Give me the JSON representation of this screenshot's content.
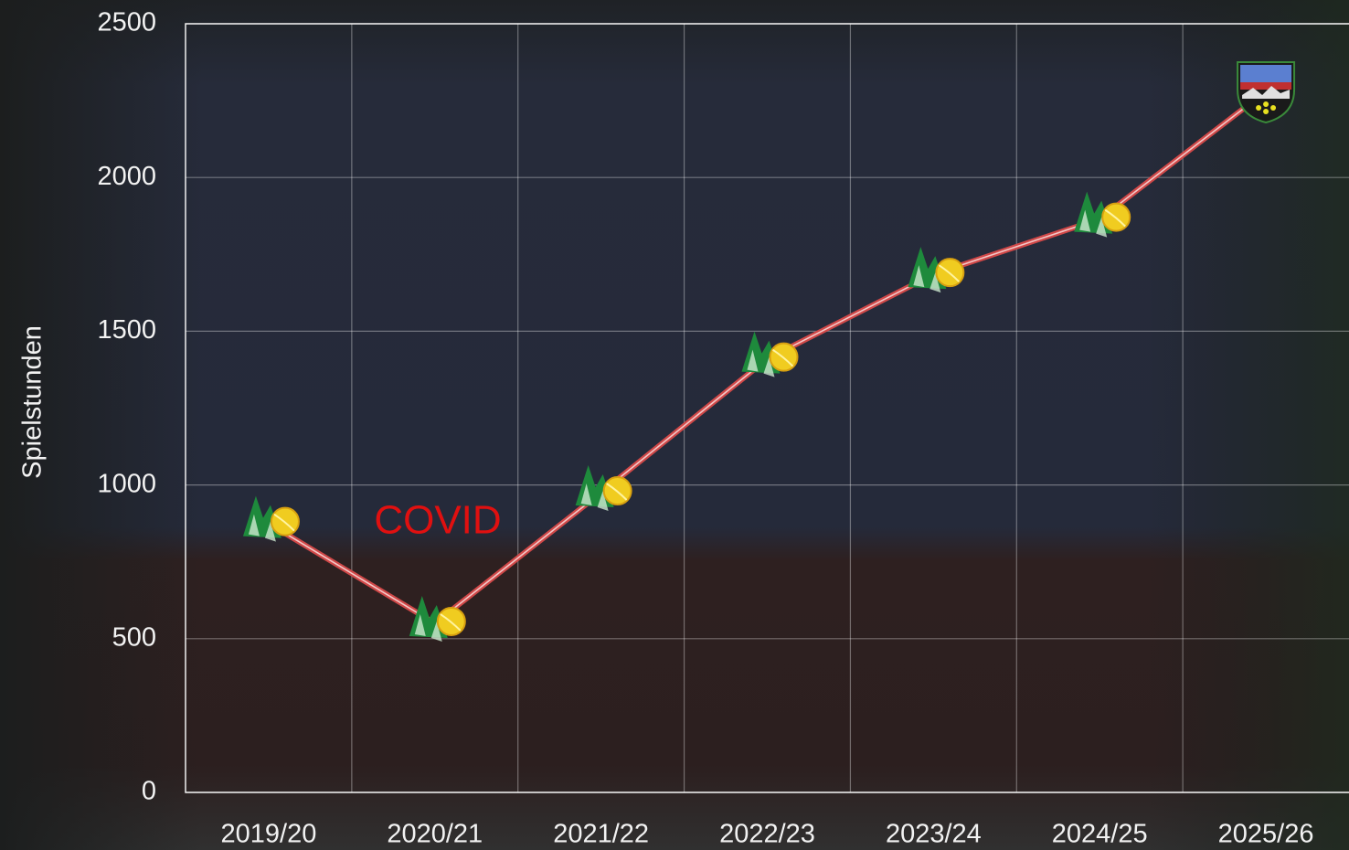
{
  "chart_data": {
    "type": "line",
    "y_label": "Spielstunden",
    "annotation": "COVID",
    "categories": [
      "2019/20",
      "2020/21",
      "2021/22",
      "2022/23",
      "2023/24",
      "2024/25",
      "2025/26"
    ],
    "values": [
      875,
      550,
      975,
      1410,
      1685,
      1865,
      2280
    ],
    "color": "#d04848",
    "annotation_color": "#e01010",
    "ylim": [
      0,
      2500
    ],
    "yticks": [
      0,
      500,
      1000,
      1500,
      2000,
      2500
    ],
    "grid": true
  }
}
